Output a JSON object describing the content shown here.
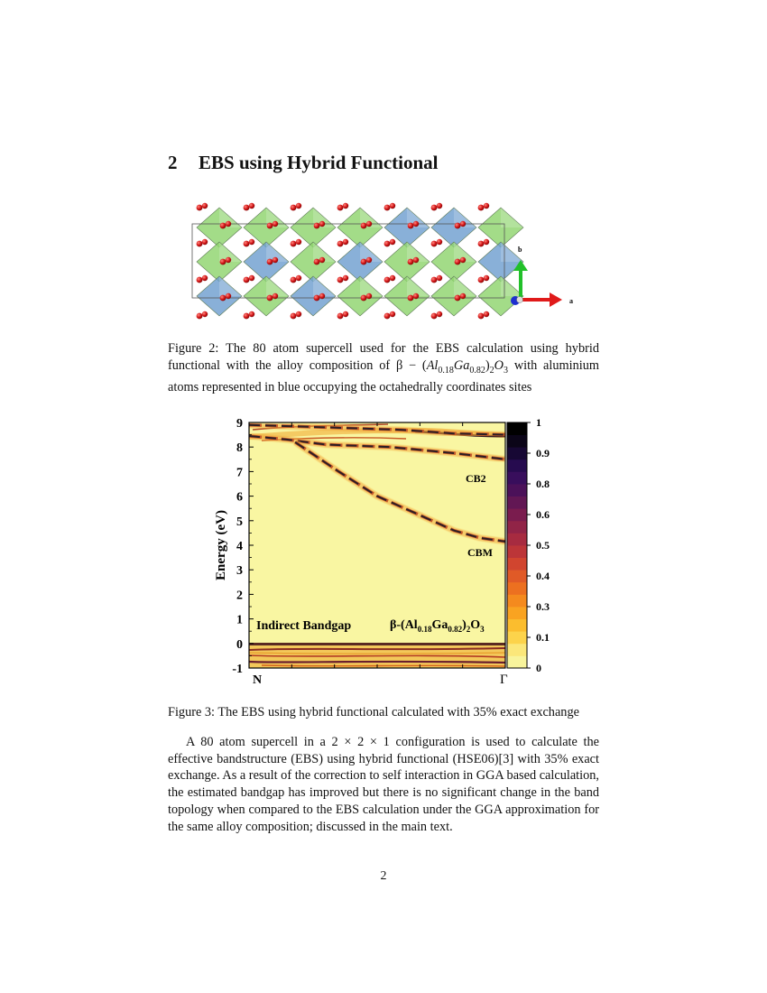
{
  "section": {
    "number": "2",
    "title": "EBS using Hybrid Functional"
  },
  "figure2": {
    "axis_b": "b",
    "axis_a": "a",
    "caption_label": "Figure 2:",
    "caption_pre": "The 80 atom supercell used for the EBS calculation using hybrid functional with the alloy composition of ",
    "caption_beta": "β − (",
    "caption_al": "Al",
    "caption_al_sub": "0.18",
    "caption_ga": "Ga",
    "caption_ga_sub": "0.82",
    "caption_close": ")",
    "caption_sub2": "2",
    "caption_o": "O",
    "caption_o_sub": "3",
    "caption_post": " with aluminium atoms represented in blue occupying the octahedrally coordinates sites"
  },
  "figure3": {
    "caption_label": "Figure 3:",
    "caption_text": "The EBS using hybrid functional calculated with 35% exact exchange"
  },
  "chart_data": {
    "type": "heatmap",
    "ylabel": "Energy (eV)",
    "ylim": [
      -1,
      9
    ],
    "y_ticks": [
      "9",
      "8",
      "7",
      "6",
      "5",
      "4",
      "3",
      "2",
      "1",
      "0",
      "-1"
    ],
    "x_tick_labels": {
      "left": "N",
      "right": "Γ"
    },
    "colorbar": {
      "min": 0,
      "max": 1,
      "tick_labels": [
        "1",
        "0.9",
        "0.8",
        "0.6",
        "0.5",
        "0.4",
        "0.3",
        "0.1",
        "0"
      ],
      "colors": [
        "#f8f49c",
        "#fbe77a",
        "#fcd34b",
        "#fbbd2e",
        "#f9a321",
        "#f48a1e",
        "#ec7020",
        "#e05a27",
        "#d1452f",
        "#bc3538",
        "#a72b40",
        "#912447",
        "#7a1c4e",
        "#621754",
        "#4b1159",
        "#380e5c",
        "#260b4f",
        "#170834",
        "#0b0518",
        "#000000"
      ]
    },
    "annotations": {
      "cb2": "CB2",
      "cbm": "CBM",
      "indirect": "Indirect Bandgap",
      "formula_beta": "β-(Al",
      "formula_sub1": "0.18",
      "formula_ga": "Ga",
      "formula_sub2": "0.82",
      "formula_close": ")",
      "formula_sub3": "2",
      "formula_o": "O",
      "formula_sub4": "3"
    },
    "bands": [
      {
        "name": "CB2",
        "points": [
          [
            0.0,
            8.45
          ],
          [
            0.15,
            8.3
          ],
          [
            0.3,
            8.1
          ],
          [
            0.55,
            8.0
          ],
          [
            0.8,
            7.75
          ],
          [
            1.0,
            7.5
          ]
        ]
      },
      {
        "name": "CBM",
        "points": [
          [
            0.18,
            8.2
          ],
          [
            0.35,
            7.0
          ],
          [
            0.5,
            6.0
          ],
          [
            0.65,
            5.3
          ],
          [
            0.8,
            4.6
          ],
          [
            0.9,
            4.3
          ],
          [
            1.0,
            4.15
          ]
        ]
      },
      {
        "name": "upper",
        "points": [
          [
            0.0,
            8.9
          ],
          [
            0.3,
            8.8
          ],
          [
            0.6,
            8.7
          ],
          [
            0.8,
            8.55
          ],
          [
            1.0,
            8.5
          ]
        ]
      }
    ]
  },
  "paragraph": {
    "text": "A 80 atom supercell in a 2 × 2 × 1 configuration is used to calculate the effective bandstructure (EBS) using hybrid functional (HSE06)[3] with 35% exact exchange. As a result of the correction to self interaction in GGA based calculation, the estimated bandgap has improved but there is no significant change in the band topology when compared to the EBS calculation under the GGA approximation for the same alloy composition; discussed in the main text."
  },
  "page_number": "2"
}
